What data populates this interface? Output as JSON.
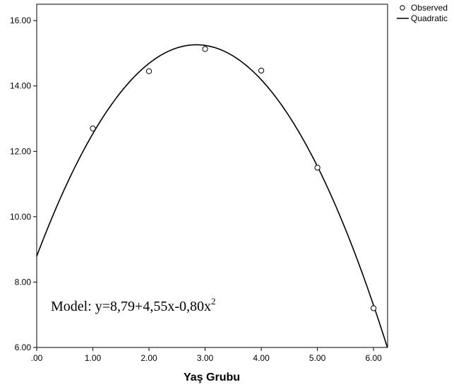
{
  "chart_data": {
    "type": "scatter",
    "xlabel": "Yaş Grubu",
    "ylabel": "",
    "xlim": [
      0,
      6.25
    ],
    "ylim": [
      6,
      16.5
    ],
    "x_ticks": [
      ".00",
      "1.00",
      "2.00",
      "3.00",
      "4.00",
      "5.00",
      "6.00"
    ],
    "y_ticks": [
      "6.00",
      "8.00",
      "10.00",
      "12.00",
      "14.00",
      "16.00"
    ],
    "grid": false,
    "legend_position": "top-right",
    "series": [
      {
        "name": "Observed",
        "kind": "points",
        "x": [
          1,
          2,
          3,
          4,
          5,
          6
        ],
        "y": [
          12.7,
          14.45,
          15.13,
          14.47,
          11.5,
          7.2
        ]
      },
      {
        "name": "Quadratic",
        "kind": "curve",
        "coefficients": {
          "b0": 8.79,
          "b1": 4.55,
          "b2": -0.8
        }
      }
    ],
    "annotation": {
      "text": "Model: y=8,79+4,55x-0,80x",
      "superscript": "2"
    }
  }
}
